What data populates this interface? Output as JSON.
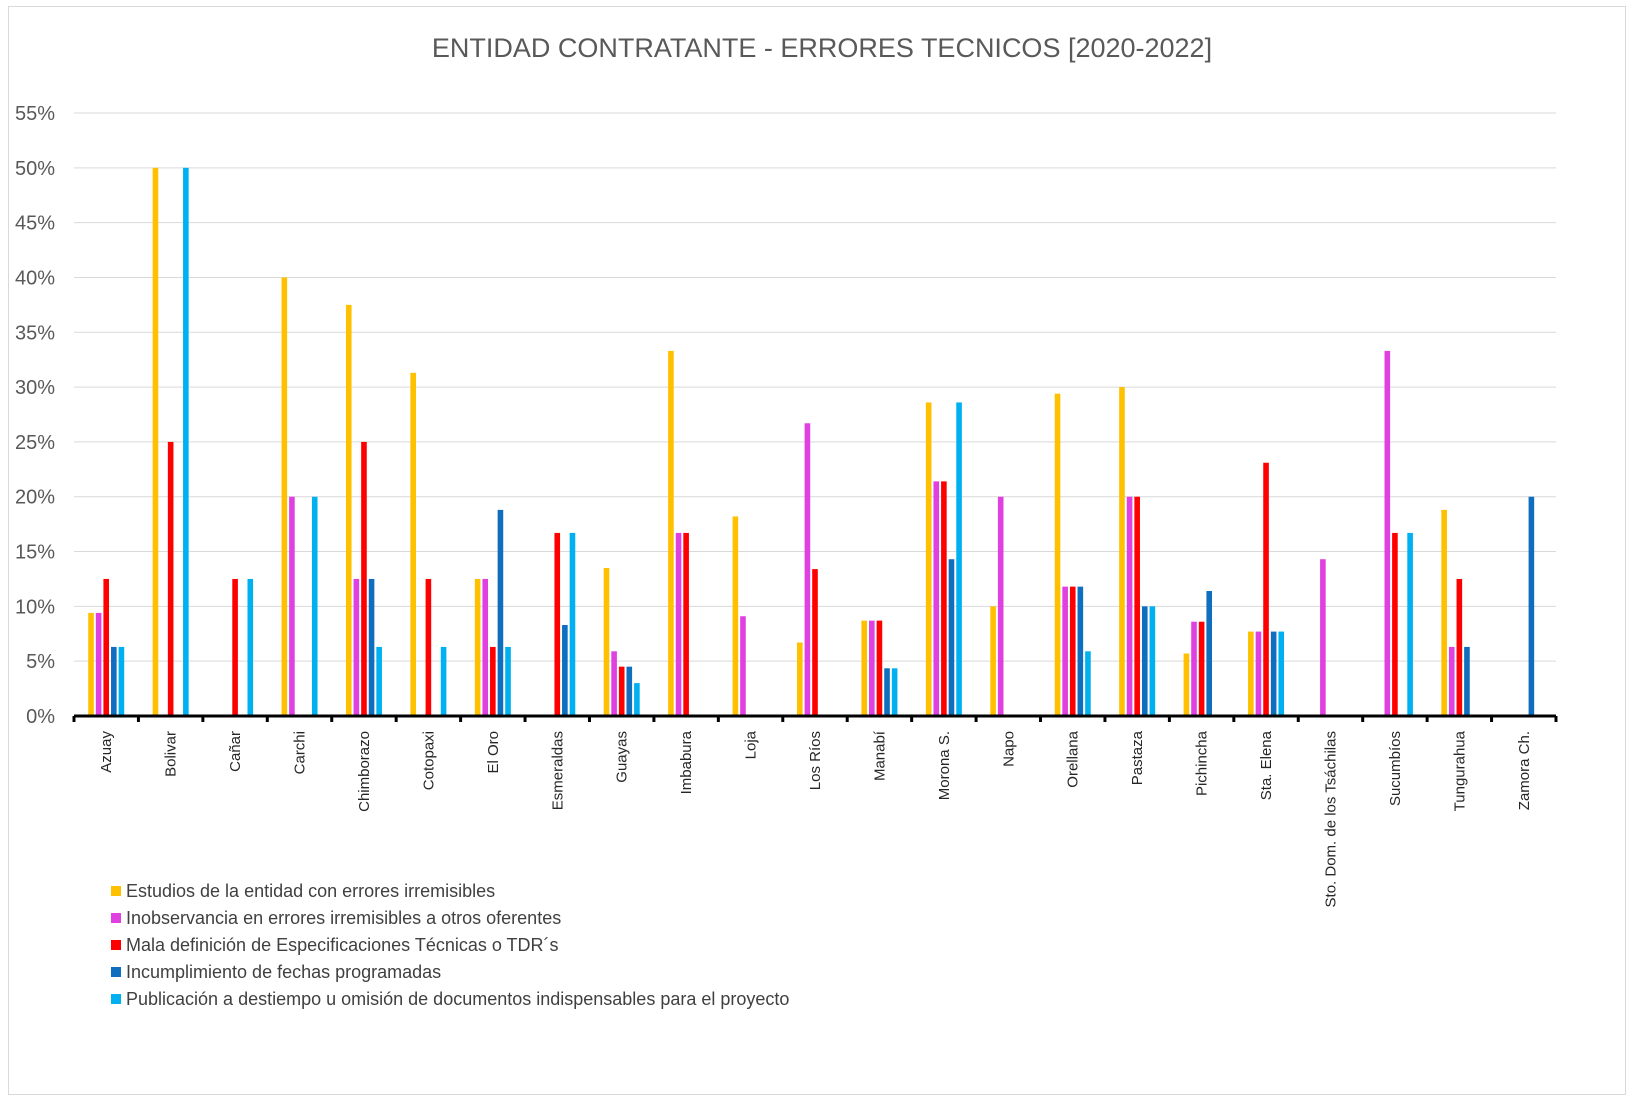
{
  "chart_data": {
    "type": "bar",
    "title": "ENTIDAD CONTRATANTE -  ERRORES TECNICOS [2020-2022]",
    "xlabel": "",
    "ylabel": "",
    "ylim": [
      0,
      55
    ],
    "y_tick_labels": [
      "0%",
      "5%",
      "10%",
      "15%",
      "20%",
      "25%",
      "30%",
      "35%",
      "40%",
      "45%",
      "50%",
      "55%"
    ],
    "y_tick_values": [
      0,
      5,
      10,
      15,
      20,
      25,
      30,
      35,
      40,
      45,
      50,
      55
    ],
    "grid": true,
    "legend_position": "bottom-left",
    "categories": [
      "Azuay",
      "Bolivar",
      "Cañar",
      "Carchi",
      "Chimborazo",
      "Cotopaxi",
      "El Oro",
      "Esmeraldas",
      "Guayas",
      "Imbabura",
      "Loja",
      "Los Ríos",
      "Manabí",
      "Morona S.",
      "Napo",
      "Orellana",
      "Pastaza",
      "Pichincha",
      "Sta. Elena",
      "Sto. Dom. de los Tsáchilas",
      "Sucumbíos",
      "Tungurahua",
      "Zamora Ch."
    ],
    "series": [
      {
        "name": "Estudios de la entidad con errores irremisibles",
        "color": "#FFC000",
        "values": [
          9.4,
          50,
          0,
          40,
          37.5,
          31.3,
          12.5,
          0,
          13.5,
          33.3,
          18.2,
          6.7,
          8.7,
          28.6,
          10,
          29.4,
          30,
          5.7,
          7.7,
          0,
          0,
          18.8,
          0
        ]
      },
      {
        "name": "Inobservancia en errores irremisibles a otros oferentes",
        "color": "#E040E0",
        "values": [
          9.4,
          0,
          0,
          20,
          12.5,
          0,
          12.5,
          0,
          5.9,
          16.7,
          9.1,
          26.7,
          8.7,
          21.4,
          20,
          11.8,
          20,
          8.6,
          7.7,
          14.3,
          33.3,
          6.3,
          0
        ]
      },
      {
        "name": "Mala definición de Especificaciones Técnicas o TDR´s",
        "color": "#FF0000",
        "values": [
          12.5,
          25,
          12.5,
          0,
          25,
          12.5,
          6.3,
          16.7,
          4.5,
          16.7,
          0,
          13.4,
          8.7,
          21.4,
          0,
          11.8,
          20,
          8.6,
          23.1,
          0,
          16.7,
          12.5,
          0
        ]
      },
      {
        "name": "Incumplimiento de fechas programadas",
        "color": "#0F6EBE",
        "values": [
          6.3,
          0,
          0,
          0,
          12.5,
          0,
          18.8,
          8.3,
          4.5,
          0,
          0,
          0,
          4.35,
          14.3,
          0,
          11.8,
          10,
          11.4,
          7.7,
          0,
          0,
          6.3,
          20
        ]
      },
      {
        "name": "Publicación a destiempo u omisión de documentos indispensables para el proyecto",
        "color": "#00B0F0",
        "values": [
          6.3,
          50,
          12.5,
          20,
          6.3,
          6.3,
          6.3,
          16.7,
          3,
          0,
          0,
          0,
          4.35,
          28.6,
          0,
          5.9,
          10,
          0,
          7.7,
          0,
          16.7,
          0,
          0
        ]
      }
    ]
  }
}
